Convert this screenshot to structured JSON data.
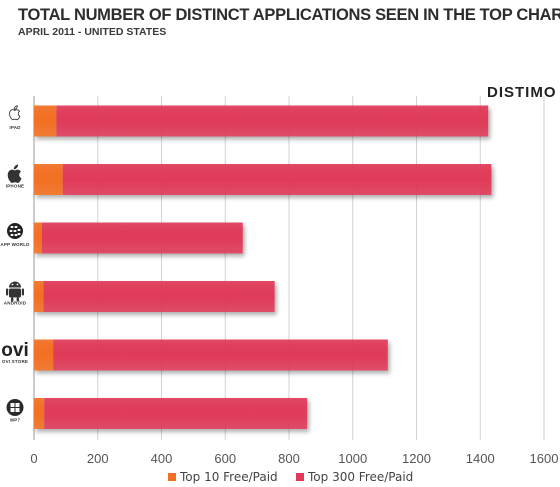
{
  "title": "TOTAL NUMBER OF DISTINCT APPLICATIONS SEEN IN THE TOP CHARTS",
  "subtitle": "APRIL 2011  - UNITED STATES",
  "brand": "DISTIMO",
  "chart_data": {
    "type": "bar",
    "orientation": "horizontal",
    "stacked": true,
    "title": "TOTAL NUMBER OF DISTINCT APPLICATIONS SEEN IN THE TOP CHARTS",
    "subtitle": "APRIL 2011  - UNITED STATES",
    "categories": [
      "IPAD",
      "IPHONE",
      "APP WORLD",
      "ANDROID",
      "OVI STORE",
      "WP7"
    ],
    "category_icons": [
      "apple-icon",
      "apple-icon",
      "blackberry-icon",
      "android-icon",
      "ovi-logo",
      "windows-icon"
    ],
    "ovi_logo_text": "ovi",
    "series": [
      {
        "name": "Top 10 Free/Paid",
        "color": "#f36f21",
        "values": [
          70,
          90,
          25,
          30,
          60,
          32
        ]
      },
      {
        "name": "Top 300 Free/Paid",
        "color": "#e03a58",
        "values": [
          1355,
          1345,
          630,
          725,
          1050,
          825
        ]
      }
    ],
    "xlim": [
      0,
      1600
    ],
    "xticks": [
      "0",
      "200",
      "400",
      "600",
      "800",
      "1000",
      "1200",
      "1400",
      "1600"
    ],
    "grid": true,
    "legend": "bottom"
  }
}
